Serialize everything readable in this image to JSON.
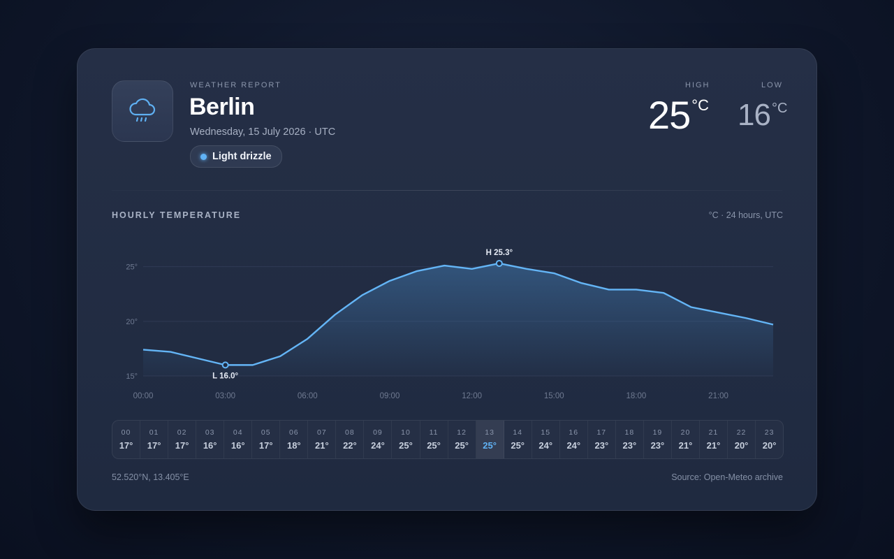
{
  "header": {
    "eyebrow": "WEATHER REPORT",
    "city": "Berlin",
    "date": "Wednesday, 15 July 2026 · UTC",
    "condition": "Light drizzle",
    "icon": "cloud-drizzle-icon"
  },
  "summary": {
    "high_label": "HIGH",
    "high_value": "25",
    "low_label": "LOW",
    "low_value": "16",
    "unit": "°C"
  },
  "chart_section": {
    "title": "HOURLY TEMPERATURE",
    "units_note": "°C · 24 hours, UTC"
  },
  "chart_data": {
    "type": "area",
    "x": [
      0,
      1,
      2,
      3,
      4,
      5,
      6,
      7,
      8,
      9,
      10,
      11,
      12,
      13,
      14,
      15,
      16,
      17,
      18,
      19,
      20,
      21,
      22,
      23
    ],
    "values": [
      17.4,
      17.2,
      16.6,
      16.0,
      16.0,
      16.8,
      18.4,
      20.6,
      22.4,
      23.7,
      24.6,
      25.1,
      24.8,
      25.3,
      24.8,
      24.4,
      23.5,
      22.9,
      22.9,
      22.6,
      21.3,
      20.8,
      20.3,
      19.7
    ],
    "ylim": [
      15,
      26
    ],
    "yticks": [
      15,
      20,
      25
    ],
    "ytick_labels": [
      "15°",
      "20°",
      "25°"
    ],
    "xticks": [
      0,
      3,
      6,
      9,
      12,
      15,
      18,
      21
    ],
    "xtick_labels": [
      "00:00",
      "03:00",
      "06:00",
      "09:00",
      "12:00",
      "15:00",
      "18:00",
      "21:00"
    ],
    "annotations": {
      "low": {
        "x": 3,
        "y": 16.0,
        "label": "L 16.0°"
      },
      "high": {
        "x": 13,
        "y": 25.3,
        "label": "H 25.3°"
      }
    },
    "grid": true,
    "colors": {
      "line": "#64b5f6",
      "fill_top": "#3b6a9a",
      "grid": "#3a4560",
      "tick": "#6f7a91"
    }
  },
  "hourly": [
    {
      "hour": "00",
      "temp": "17°"
    },
    {
      "hour": "01",
      "temp": "17°"
    },
    {
      "hour": "02",
      "temp": "17°"
    },
    {
      "hour": "03",
      "temp": "16°"
    },
    {
      "hour": "04",
      "temp": "16°"
    },
    {
      "hour": "05",
      "temp": "17°"
    },
    {
      "hour": "06",
      "temp": "18°"
    },
    {
      "hour": "07",
      "temp": "21°"
    },
    {
      "hour": "08",
      "temp": "22°"
    },
    {
      "hour": "09",
      "temp": "24°"
    },
    {
      "hour": "10",
      "temp": "25°"
    },
    {
      "hour": "11",
      "temp": "25°"
    },
    {
      "hour": "12",
      "temp": "25°"
    },
    {
      "hour": "13",
      "temp": "25°",
      "active": true
    },
    {
      "hour": "14",
      "temp": "25°"
    },
    {
      "hour": "15",
      "temp": "24°"
    },
    {
      "hour": "16",
      "temp": "24°"
    },
    {
      "hour": "17",
      "temp": "23°"
    },
    {
      "hour": "18",
      "temp": "23°"
    },
    {
      "hour": "19",
      "temp": "23°"
    },
    {
      "hour": "20",
      "temp": "21°"
    },
    {
      "hour": "21",
      "temp": "21°"
    },
    {
      "hour": "22",
      "temp": "20°"
    },
    {
      "hour": "23",
      "temp": "20°"
    }
  ],
  "footer": {
    "coords": "52.520°N, 13.405°E",
    "source": "Source: Open-Meteo archive"
  }
}
